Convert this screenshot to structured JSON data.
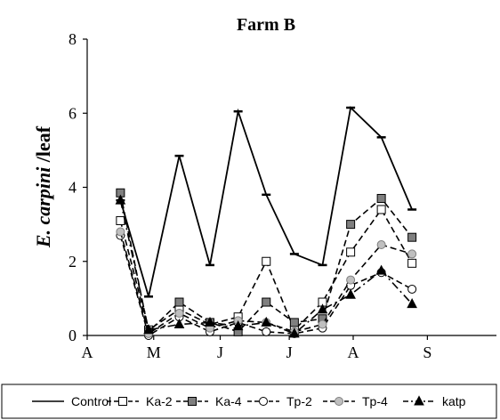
{
  "chart_data": {
    "type": "line",
    "title": "Farm B",
    "ylabel_italic": "E. carpini",
    "ylabel_rest": " /leaf",
    "xlabel": "",
    "ylim": [
      0,
      8
    ],
    "yticks": [
      0,
      2,
      4,
      6,
      8
    ],
    "x_range": [
      0,
      16
    ],
    "month_labels": [
      {
        "label": "A",
        "x": 0
      },
      {
        "label": "M",
        "x": 2.6
      },
      {
        "label": "J",
        "x": 5.2
      },
      {
        "label": "J",
        "x": 7.9
      },
      {
        "label": "A",
        "x": 10.4
      },
      {
        "label": "S",
        "x": 13.3
      }
    ],
    "x": [
      1.3,
      2.4,
      3.6,
      4.8,
      5.9,
      7.0,
      8.1,
      9.2,
      10.3,
      11.5,
      12.7
    ],
    "series": [
      {
        "name": "Control",
        "values": [
          3.65,
          1.05,
          4.85,
          1.9,
          6.05,
          3.8,
          2.2,
          1.9,
          6.15,
          5.35,
          3.4
        ],
        "style": "solid",
        "marker": "dash"
      },
      {
        "name": "Ka-2",
        "values": [
          3.1,
          0.15,
          0.7,
          0.3,
          0.5,
          2.0,
          0.15,
          0.9,
          2.25,
          3.4,
          1.95
        ],
        "style": "dashed",
        "marker": "square-open"
      },
      {
        "name": "Ka-4",
        "values": [
          3.85,
          0.1,
          0.9,
          0.35,
          0.1,
          0.9,
          0.35,
          0.45,
          3.0,
          3.7,
          2.65
        ],
        "style": "dashed",
        "marker": "square-filled"
      },
      {
        "name": "Tp-2",
        "values": [
          2.7,
          0.0,
          0.5,
          0.1,
          0.35,
          0.1,
          0.05,
          0.2,
          1.35,
          1.7,
          1.25
        ],
        "style": "dashed",
        "marker": "circle-open"
      },
      {
        "name": "Tp-4",
        "values": [
          2.8,
          0.05,
          0.6,
          0.2,
          0.4,
          0.35,
          0.1,
          0.3,
          1.5,
          2.45,
          2.2
        ],
        "style": "dashed",
        "marker": "circle-filled"
      },
      {
        "name": "katp",
        "values": [
          3.65,
          0.15,
          0.3,
          0.35,
          0.25,
          0.35,
          0.05,
          0.7,
          1.1,
          1.75,
          0.85
        ],
        "style": "dashdot",
        "marker": "triangle-filled"
      }
    ],
    "legend_position": "bottom",
    "grid": false
  }
}
